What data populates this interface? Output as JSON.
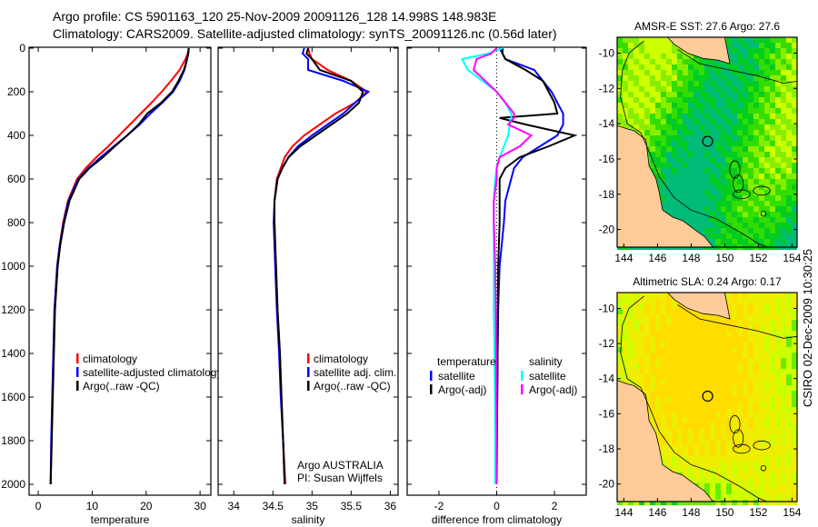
{
  "title": {
    "line1": "Argo profile: CS 5901163_120 25-Nov-2009 20091126_128 14.998S 148.983E",
    "line2": "Climatology: CARS2009. Satellite-adjusted climatology: synTS_20091126.nc (0.56d later)"
  },
  "credit": "CSIRO 02-Dec-2009 10:30:25",
  "chart_data": [
    {
      "type": "line",
      "id": "temperature",
      "xlabel": "temperature",
      "ylabel": "",
      "xlim": [
        -1.7,
        32
      ],
      "ylim": [
        2050,
        0
      ],
      "xticks": [
        0,
        10,
        20,
        30
      ],
      "yticks": [
        0,
        200,
        400,
        600,
        800,
        1000,
        1200,
        1400,
        1600,
        1800,
        2000
      ],
      "depth": [
        0,
        25,
        50,
        100,
        150,
        200,
        250,
        300,
        350,
        400,
        450,
        500,
        550,
        600,
        700,
        800,
        900,
        1000,
        1200,
        1400,
        1600,
        1800,
        2000
      ],
      "series": [
        {
          "name": "climatology",
          "color": "#ff0000",
          "values": [
            27.9,
            27.7,
            27.3,
            26.2,
            24.6,
            22.9,
            21.0,
            19.0,
            17.0,
            15.0,
            13.0,
            10.8,
            8.8,
            7.2,
            5.5,
            4.6,
            4.0,
            3.5,
            3.0,
            2.8,
            2.6,
            2.5,
            2.3
          ]
        },
        {
          "name": "satellite-adjusted climatology",
          "color": "#0000ff",
          "values": [
            27.9,
            27.8,
            27.6,
            27.1,
            26.2,
            25.0,
            23.0,
            20.8,
            18.8,
            16.5,
            14.0,
            11.6,
            9.3,
            7.4,
            5.6,
            4.7,
            4.0,
            3.5,
            3.0,
            2.8,
            2.6,
            2.4,
            2.3
          ]
        },
        {
          "name": "Argo(..raw -QC)",
          "color": "#000000",
          "values": [
            27.9,
            27.8,
            27.6,
            27.0,
            26.0,
            24.8,
            22.8,
            20.2,
            18.6,
            16.5,
            14.2,
            12.0,
            9.5,
            7.6,
            5.8,
            4.8,
            4.1,
            3.6,
            3.1,
            2.9,
            2.7,
            2.5,
            2.3
          ]
        }
      ],
      "legend_position": "bottom-center"
    },
    {
      "type": "line",
      "id": "salinity",
      "xlabel": "salinity",
      "xlim": [
        33.8,
        36.1
      ],
      "ylim": [
        2050,
        0
      ],
      "xticks": [
        34,
        34.5,
        35,
        35.5,
        36
      ],
      "depth": [
        0,
        25,
        50,
        100,
        150,
        200,
        250,
        300,
        350,
        400,
        450,
        500,
        550,
        600,
        700,
        800,
        900,
        1000,
        1200,
        1400,
        1600,
        1800,
        2000
      ],
      "series": [
        {
          "name": "climatology",
          "color": "#ff0000",
          "values": [
            34.95,
            34.97,
            35.0,
            35.2,
            35.5,
            35.7,
            35.55,
            35.3,
            35.1,
            34.9,
            34.75,
            34.65,
            34.6,
            34.55,
            34.52,
            34.52,
            34.53,
            34.54,
            34.56,
            34.59,
            34.61,
            34.63,
            34.66
          ]
        },
        {
          "name": "satellite adj. clim.",
          "color": "#0000ff",
          "values": [
            34.9,
            34.88,
            34.95,
            34.95,
            35.4,
            35.72,
            35.55,
            35.4,
            35.2,
            35.0,
            34.82,
            34.7,
            34.62,
            34.56,
            34.52,
            34.51,
            34.52,
            34.53,
            34.55,
            34.58,
            34.6,
            34.63,
            34.65
          ]
        },
        {
          "name": "Argo(..raw -QC)",
          "color": "#000000",
          "values": [
            34.95,
            34.93,
            35.0,
            35.1,
            35.5,
            35.65,
            35.6,
            35.45,
            35.25,
            35.05,
            34.85,
            34.7,
            34.62,
            34.56,
            34.52,
            34.52,
            34.53,
            34.54,
            34.56,
            34.59,
            34.61,
            34.63,
            34.65
          ]
        }
      ],
      "annotation": {
        "line1": "Argo AUSTRALIA",
        "line2": "PI: Susan Wijffels"
      },
      "legend_position": "bottom-center"
    },
    {
      "type": "line",
      "id": "difference",
      "xlabel": "difference from climatology",
      "xlim": [
        -3.1,
        3.1
      ],
      "ylim": [
        2050,
        0
      ],
      "xticks": [
        -2,
        0,
        2
      ],
      "depth": [
        0,
        25,
        50,
        100,
        150,
        200,
        250,
        300,
        320,
        350,
        400,
        450,
        500,
        550,
        600,
        700,
        800,
        1000,
        1200,
        1400,
        1600,
        1800,
        2000
      ],
      "series": [
        {
          "name": "temperature satellite",
          "color": "#0000ff",
          "values": [
            0.1,
            0.2,
            0.3,
            1.3,
            1.6,
            1.9,
            2.1,
            2.3,
            2.3,
            2.3,
            2.1,
            1.5,
            0.9,
            0.6,
            0.5,
            0.3,
            0.25,
            0.1,
            0.05,
            0.03,
            0.02,
            0.01,
            0.0
          ]
        },
        {
          "name": "temperature Argo(-adj)",
          "color": "#000000",
          "values": [
            0.2,
            0.2,
            0.3,
            1.0,
            1.6,
            1.8,
            2.0,
            2.1,
            0.1,
            1.0,
            2.7,
            1.8,
            0.8,
            0.3,
            0.1,
            0.1,
            0.1,
            0.05,
            0.04,
            0.03,
            0.02,
            0.01,
            0.0
          ]
        },
        {
          "name": "salinity satellite",
          "color": "#00ffff",
          "values": [
            0.2,
            -0.3,
            -1.2,
            -1.0,
            -0.5,
            0.0,
            0.3,
            0.5,
            0.5,
            0.45,
            0.4,
            0.25,
            0.1,
            0.0,
            -0.05,
            -0.1,
            -0.1,
            -0.1,
            -0.1,
            -0.08,
            -0.06,
            -0.05,
            -0.05
          ]
        },
        {
          "name": "salinity Argo(-adj)",
          "color": "#ff00ff",
          "values": [
            0.0,
            -0.2,
            -0.7,
            -0.8,
            -0.4,
            0.0,
            0.3,
            0.6,
            0.6,
            0.4,
            1.2,
            0.8,
            0.1,
            0.0,
            0.0,
            -0.1,
            -0.1,
            -0.05,
            -0.03,
            -0.02,
            -0.01,
            0.0,
            0.0
          ]
        }
      ],
      "legend": {
        "temperature_header": "temperature",
        "salinity_header": "salinity",
        "satellite": "satellite",
        "argo": "Argo(-adj)"
      },
      "zero_line": "dotted"
    },
    {
      "type": "heatmap",
      "id": "sst-map",
      "title": "AMSR-E SST: 27.6 Argo: 27.6",
      "xlim": [
        143.6,
        154.3
      ],
      "ylim": [
        -21,
        -9.1
      ],
      "xticks": [
        144,
        146,
        148,
        150,
        152,
        154
      ],
      "yticks": [
        -10,
        -12,
        -14,
        -16,
        -18,
        -20
      ],
      "argo_position": {
        "lon": 148.983,
        "lat": -14.998
      }
    },
    {
      "type": "heatmap",
      "id": "sla-map",
      "title": "Altimetric SLA: 0.24 Argo: 0.17",
      "xlim": [
        143.6,
        154.3
      ],
      "ylim": [
        -21,
        -9.1
      ],
      "xticks": [
        144,
        146,
        148,
        150,
        152,
        154
      ],
      "yticks": [
        -10,
        -12,
        -14,
        -16,
        -18,
        -20
      ],
      "argo_position": {
        "lon": 148.983,
        "lat": -14.998
      }
    }
  ]
}
